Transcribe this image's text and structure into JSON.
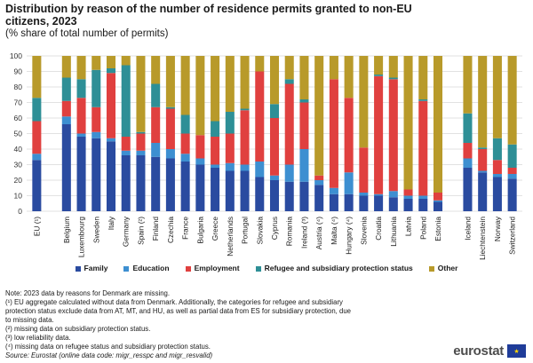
{
  "header": {
    "title": "Distribution by reason of the number of residence permits granted to non-EU citizens, 2023",
    "subtitle": "(% share of total number of permits)"
  },
  "chart_data": {
    "type": "bar",
    "stacked": true,
    "ylim": [
      0,
      100
    ],
    "yticks": [
      0,
      10,
      20,
      30,
      40,
      50,
      60,
      70,
      80,
      90,
      100
    ],
    "grid": true,
    "legend_position": "bottom",
    "categories": [
      "EU (¹)",
      "Belgium",
      "Luxembourg",
      "Sweden",
      "Italy",
      "Germany",
      "Spain (²)",
      "Finland",
      "Czechia",
      "France",
      "Bulgaria",
      "Greece",
      "Netherlands",
      "Portugal",
      "Slovakia",
      "Cyprus",
      "Romania",
      "Ireland (³)",
      "Austria (⁴)",
      "Malta (⁴)",
      "Hungary (⁴)",
      "Slovenia",
      "Croatia",
      "Lithuania",
      "Latvia",
      "Poland",
      "Estonia",
      "Iceland",
      "Liechtenstein",
      "Norway",
      "Switzerland"
    ],
    "groups": [
      1,
      26,
      4
    ],
    "series": [
      {
        "name": "Family",
        "color": "#2a4ba0",
        "values": [
          33,
          56,
          48,
          47,
          45,
          36,
          36,
          35,
          34,
          32,
          30,
          28,
          26,
          26,
          22,
          20,
          19,
          19,
          17,
          11,
          11,
          10,
          10,
          9,
          8,
          8,
          6,
          28,
          25,
          22,
          21
        ]
      },
      {
        "name": "Education",
        "color": "#3d8fd1",
        "values": [
          4,
          5,
          2,
          4,
          2,
          3,
          3,
          9,
          6,
          5,
          4,
          2,
          5,
          4,
          10,
          3,
          11,
          21,
          3,
          4,
          14,
          2,
          1,
          4,
          2,
          2,
          1,
          6,
          1,
          2,
          3
        ]
      },
      {
        "name": "Employment",
        "color": "#e0403f",
        "values": [
          21,
          10,
          23,
          16,
          42,
          9,
          11,
          23,
          26,
          13,
          15,
          18,
          19,
          35,
          58,
          37,
          52,
          30,
          3,
          70,
          48,
          29,
          76,
          72,
          4,
          61,
          5,
          10,
          14,
          9,
          4
        ]
      },
      {
        "name": "Refugee and subsidiary protection status",
        "color": "#2e8f96",
        "values": [
          15,
          15,
          12,
          24,
          3,
          46,
          1,
          15,
          1,
          12,
          0,
          10,
          14,
          1,
          0,
          9,
          3,
          2,
          0,
          0,
          0,
          0,
          1,
          1,
          0,
          1,
          0,
          19,
          1,
          14,
          15
        ]
      },
      {
        "name": "Other",
        "color": "#b89a2a",
        "values": [
          27,
          14,
          15,
          9,
          8,
          6,
          49,
          18,
          33,
          38,
          51,
          42,
          36,
          34,
          10,
          31,
          15,
          28,
          77,
          15,
          27,
          59,
          12,
          14,
          86,
          28,
          88,
          37,
          59,
          53,
          57
        ]
      }
    ]
  },
  "notes": [
    "Note: 2023 data by reasons for Denmark are missing.",
    "(¹) EU aggregate calculated without data from Denmark. Additionally, the categories for refugee and subsidiary",
    "protection status exclude data from AT, MT, and HU, as well as partial data from ES for subsidiary protection, due",
    "to missing data.",
    "(²) missing data on subsidiary protection status.",
    "(³) low reliability data.",
    "(⁴) missing data on refugee status and subsidiary protection status."
  ],
  "source": "Source: Eurostat (online data code: migr_resspc and migr_resvalid)",
  "logo": {
    "text": "eurostat",
    "icon": "eu-flag-icon"
  }
}
